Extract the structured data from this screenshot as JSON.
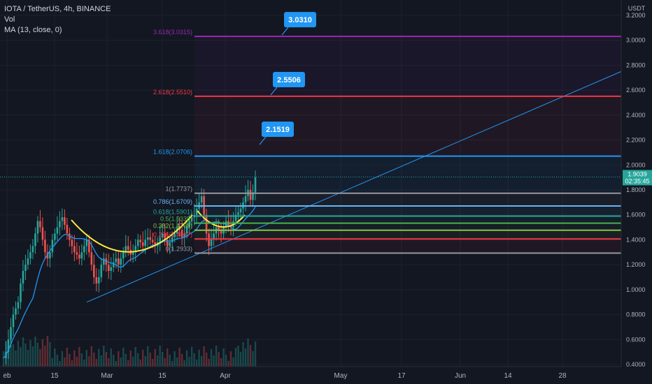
{
  "legend": {
    "symbol": "IOTA / TetherUS, 4h, BINANCE",
    "vol": "Vol",
    "ma": "MA (13, close, 0)"
  },
  "chart_data": {
    "type": "candlestick",
    "title": "IOTA / TetherUS, 4h, BINANCE",
    "y_unit": "USDT",
    "ylim": [
      0.4,
      3.2
    ],
    "y_ticks": [
      "3.2000",
      "3.0000",
      "2.8000",
      "2.6000",
      "2.4000",
      "2.2000",
      "2.0000",
      "1.8000",
      "1.6000",
      "1.4000",
      "1.2000",
      "1.0000",
      "0.8000",
      "0.6000",
      "0.4000"
    ],
    "x_tick_labels": [
      "eb",
      "15",
      "Mar",
      "15",
      "Apr",
      "May",
      "17",
      "Jun",
      "14",
      "28"
    ],
    "last_price": "1.9039",
    "countdown": "02:35:45",
    "fib_levels": [
      {
        "label": "3.618(3.0315)",
        "value": 3.0315,
        "color": "#9c27b0",
        "extended": true
      },
      {
        "label": "2.618(2.5510)",
        "value": 2.551,
        "color": "#f23645",
        "extended": true
      },
      {
        "label": "1.618(2.0706)",
        "value": 2.0706,
        "color": "#2196f3",
        "extended": true
      },
      {
        "label": "1(1.7737)",
        "value": 1.7737,
        "color": "#9598a1",
        "extended": true
      },
      {
        "label": "0.786(1.6709)",
        "value": 1.6709,
        "color": "#64b5f6",
        "extended": true
      },
      {
        "label": "0.618(1.5901)",
        "value": 1.5901,
        "color": "#26a69a",
        "extended": true
      },
      {
        "label": "0.5(1.5335)",
        "value": 1.5335,
        "color": "#4caf50",
        "extended": true
      },
      {
        "label": "0.382(1.4768)",
        "value": 1.4768,
        "color": "#8bc34a",
        "extended": true
      },
      {
        "label": "0.236(1.4067)",
        "value": 1.4067,
        "color": "#f23645",
        "extended": true
      },
      {
        "label": "0(1.2933)",
        "value": 1.2933,
        "color": "#9598a1",
        "extended": true
      }
    ],
    "callouts": [
      {
        "text": "3.0310",
        "value": 3.031
      },
      {
        "text": "2.5506",
        "value": 2.5506
      },
      {
        "text": "2.1519",
        "value": 2.1519
      }
    ],
    "trendline": {
      "from": 0.9,
      "to": 2.75,
      "color": "#2196f3"
    },
    "price_path": [
      0.45,
      0.5,
      0.6,
      0.7,
      0.8,
      0.85,
      0.9,
      1.05,
      1.15,
      1.2,
      1.25,
      1.3,
      1.35,
      1.45,
      1.55,
      1.5,
      1.4,
      1.3,
      1.25,
      1.3,
      1.4,
      1.45,
      1.5,
      1.55,
      1.58,
      1.52,
      1.45,
      1.4,
      1.35,
      1.3,
      1.28,
      1.25,
      1.3,
      1.35,
      1.4,
      1.3,
      1.2,
      1.1,
      1.05,
      1.1,
      1.2,
      1.25,
      1.2,
      1.15,
      1.18,
      1.22,
      1.25,
      1.2,
      1.25,
      1.3,
      1.35,
      1.32,
      1.28,
      1.3,
      1.35,
      1.4,
      1.38,
      1.35,
      1.4,
      1.42,
      1.4,
      1.38,
      1.35,
      1.38,
      1.42,
      1.45,
      1.4,
      1.35,
      1.38,
      1.42,
      1.45,
      1.5,
      1.48,
      1.42,
      1.45,
      1.5,
      1.55,
      1.58,
      1.6,
      1.65,
      1.7,
      1.75,
      1.6,
      1.45,
      1.35,
      1.4,
      1.45,
      1.5,
      1.48,
      1.45,
      1.5,
      1.55,
      1.52,
      1.5,
      1.55,
      1.6,
      1.62,
      1.65,
      1.7,
      1.75,
      1.8,
      1.72,
      1.78,
      1.9
    ],
    "ma_period": 13
  }
}
